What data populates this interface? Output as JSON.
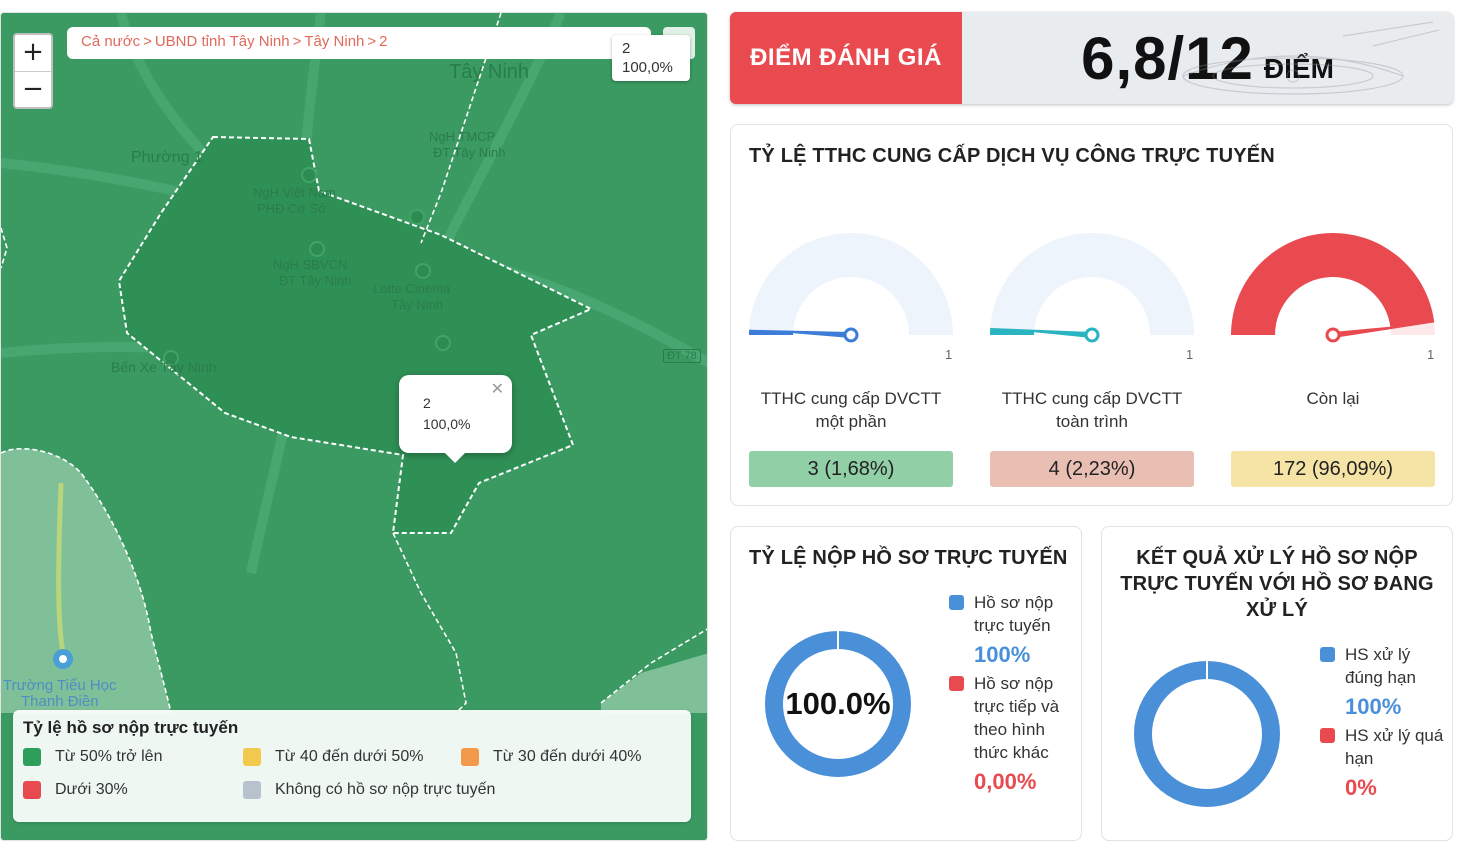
{
  "map": {
    "breadcrumb": [
      "Cả nước",
      "UBND tỉnh Tây Ninh",
      "Tây Ninh",
      "2"
    ],
    "corner_label": {
      "line1": "2",
      "line2": "100,0%"
    },
    "popup": {
      "line1": "2",
      "line2": "100,0%"
    },
    "place_labels": {
      "tay_ninh": "Tây Ninh",
      "phuong1": "Phường 1",
      "ben_xe": "Bến Xe Tây Ninh",
      "truong": "Trường Tiểu Học",
      "truong2": "Thanh Điền",
      "bank1": "NgH TMCP",
      "bank1b": "ĐT Tây Ninh",
      "bank2": "NgH Việt Nam",
      "bank2b": "PHĐ Cơ Sở",
      "bank3": "NgH SBVCN",
      "bank3b": "ĐT Tây Ninh",
      "lotte": "Lotte Cinema",
      "lotteb": "Tây Ninh",
      "road": "ĐT 78"
    },
    "legend": {
      "title": "Tỷ lệ hồ sơ nộp trực tuyến",
      "items": [
        {
          "label": "Từ 50% trở lên",
          "color": "#2e9e5b"
        },
        {
          "label": "Từ 40 đến dưới 50%",
          "color": "#f2c94c"
        },
        {
          "label": "Từ 30 đến dưới 40%",
          "color": "#f2994a"
        },
        {
          "label": "Dưới 30%",
          "color": "#e84a4f"
        },
        {
          "label": "Không có hồ sơ nộp trực tuyến",
          "color": "#b8c2cc"
        }
      ]
    }
  },
  "score": {
    "label": "ĐIỂM ĐÁNH GIÁ",
    "value": "6,8/12",
    "unit": "ĐIỂM"
  },
  "gauges": {
    "title": "TỶ LỆ TTHC CUNG CẤP DỊCH VỤ CÔNG TRỰC TUYẾN",
    "items": [
      {
        "name": "TTHC cung cấp DVCTT một phần",
        "stat": "3 (1,68%)",
        "max": "1",
        "fraction": 0.0168,
        "needle_color": "#3b7dd8",
        "arc_color": "#edf4fb",
        "fill_color": "#3b7dd8",
        "stat_bg": "#91cfa7"
      },
      {
        "name": "TTHC cung cấp DVCTT toàn trình",
        "stat": "4 (2,23%)",
        "max": "1",
        "fraction": 0.0223,
        "needle_color": "#2ab3c0",
        "arc_color": "#edf4fb",
        "fill_color": "#2ab3c0",
        "stat_bg": "#eabfb3"
      },
      {
        "name": "Còn lại",
        "stat": "172 (96,09%)",
        "max": "1",
        "fraction": 0.9609,
        "needle_color": "#e84a4f",
        "arc_color": "#e84a4f",
        "fill_color": "#e84a4f",
        "stat_bg": "#f5e4a6"
      }
    ]
  },
  "submit": {
    "title": "TỶ LỆ NỘP HỒ SƠ TRỰC TUYẾN",
    "center": "100.0%",
    "legend": [
      {
        "label": "Hồ sơ nộp trực tuyến",
        "value": "100%",
        "color": "#4a90d9"
      },
      {
        "label": "Hồ sơ nộp trực tiếp và theo hình thức khác",
        "value": "0,00%",
        "color": "#e84a4f"
      }
    ]
  },
  "result": {
    "title": "KẾT QUẢ XỬ LÝ HỒ SƠ NỘP TRỰC TUYẾN VỚI HỒ SƠ ĐANG XỬ LÝ",
    "legend": [
      {
        "label": "HS xử lý đúng hạn",
        "value": "100%",
        "color": "#4a90d9"
      },
      {
        "label": "HS xử lý quá hạn",
        "value": "0%",
        "color": "#e84a4f"
      }
    ]
  }
}
